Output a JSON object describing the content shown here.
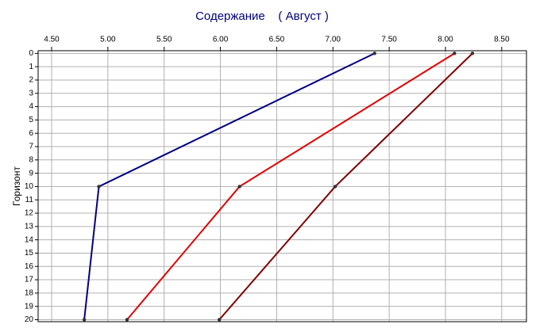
{
  "chart_data": {
    "type": "line",
    "title": "Содержание    ( Август )",
    "y_label": "Горизонт",
    "x_axis_position": "top",
    "y_inverted": true,
    "grid": true,
    "xlim": [
      4.38,
      8.72
    ],
    "ylim": [
      -0.2,
      20.15
    ],
    "xticks": [
      {
        "value": 4.5,
        "label": "4.50"
      },
      {
        "value": 5,
        "label": "5.00"
      },
      {
        "value": 5.5,
        "label": "5.50"
      },
      {
        "value": 6,
        "label": "6.00"
      },
      {
        "value": 6.5,
        "label": "6.50"
      },
      {
        "value": 7,
        "label": "7.00"
      },
      {
        "value": 7.5,
        "label": "7.50"
      },
      {
        "value": 8,
        "label": "8.00"
      },
      {
        "value": 8.5,
        "label": "8.50"
      }
    ],
    "yticks": [
      0,
      1,
      2,
      3,
      4,
      5,
      6,
      7,
      8,
      9,
      10,
      11,
      12,
      13,
      14,
      15,
      16,
      17,
      18,
      19,
      20
    ],
    "y": [
      0,
      10,
      20
    ],
    "series": [
      {
        "color": "#000080",
        "x": [
          7.37,
          4.92,
          4.79
        ]
      },
      {
        "color": "#e00000",
        "x": [
          8.08,
          6.17,
          5.17
        ]
      },
      {
        "color": "#800000",
        "x": [
          8.24,
          7.02,
          5.99
        ]
      }
    ]
  }
}
